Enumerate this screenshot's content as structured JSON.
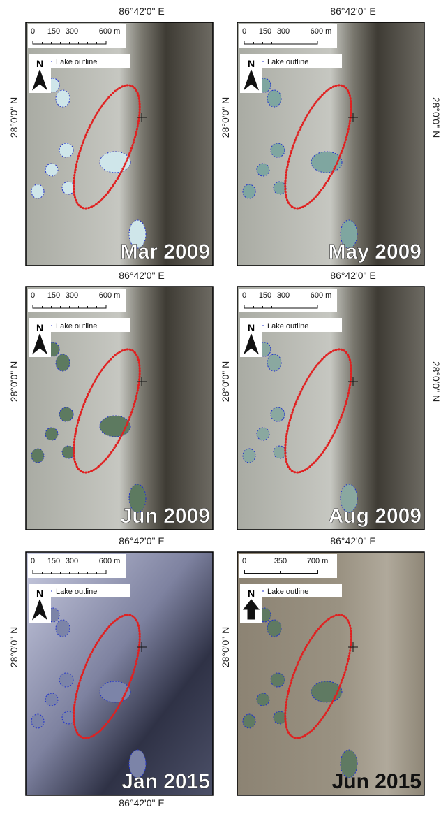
{
  "panels": [
    {
      "date": "Mar 2009",
      "lon_label": "86°42'0\" E",
      "lat_label": "28°0'0\" N",
      "scale_labels": [
        "0",
        "150",
        "300",
        "600  m"
      ],
      "legend": "Lake outline",
      "north": "N"
    },
    {
      "date": "May 2009",
      "lon_label": "86°42'0\" E",
      "lat_label": "28°0'0\" N",
      "right_label": "28°0'0\" N",
      "scale_labels": [
        "0",
        "150",
        "300",
        "600  m"
      ],
      "legend": "Lake outline",
      "north": "N"
    },
    {
      "date": "Jun 2009",
      "lon_label": "86°42'0\" E",
      "lat_label": "28°0'0\" N",
      "scale_labels": [
        "0",
        "150",
        "300",
        "600  m"
      ],
      "legend": "Lake outline",
      "north": "N"
    },
    {
      "date": "Aug 2009",
      "lon_label": "86°42'0\" E",
      "lat_label": "28°0'0\" N",
      "right_label": "28°0'0\" N",
      "scale_labels": [
        "0",
        "150",
        "300",
        "600  m"
      ],
      "legend": "Lake outline",
      "north": "N"
    },
    {
      "date": "Jan 2015",
      "lon_label": "86°42'0\" E",
      "lat_label": "28°0'0\" N",
      "bottom_label": "86°42'0\" E",
      "scale_labels": [
        "0",
        "150",
        "300",
        "600  m"
      ],
      "legend": "Lake outline",
      "north": "N"
    },
    {
      "date": "Jun 2015",
      "lon_label": "86°42'0\" E",
      "lat_label": "28°0'0\" N",
      "scale_labels": [
        "0",
        "350",
        "700 m"
      ],
      "legend": "Lake outline",
      "north": "N"
    }
  ]
}
